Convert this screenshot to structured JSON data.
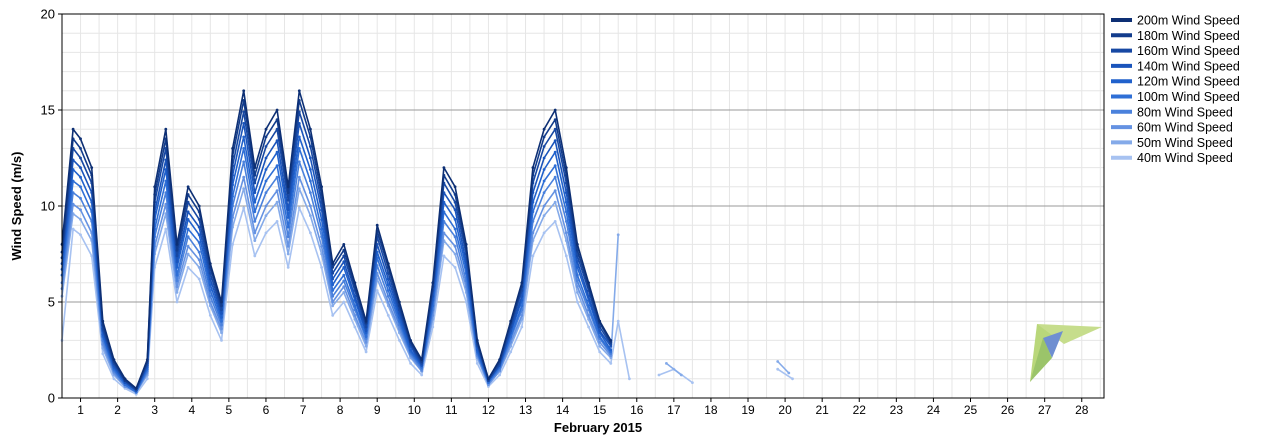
{
  "chart_data": {
    "type": "line",
    "xlabel": "February 2015",
    "ylabel": "Wind Speed (m/s)",
    "xlim": [
      0.5,
      28.6
    ],
    "ylim": [
      0,
      20
    ],
    "x_ticks": [
      1,
      2,
      3,
      4,
      5,
      6,
      7,
      8,
      9,
      10,
      11,
      12,
      13,
      14,
      15,
      16,
      17,
      18,
      19,
      20,
      21,
      22,
      23,
      24,
      25,
      26,
      27,
      28
    ],
    "y_ticks": [
      0,
      5,
      10,
      15,
      20
    ],
    "grid": true,
    "legend_position": "right",
    "x_unit": "day of February 2015",
    "series": [
      {
        "name": "200m Wind Speed",
        "color": "#0d2f74",
        "x": [
          0.5,
          0.8,
          1.0,
          1.3,
          1.6,
          1.9,
          2.2,
          2.5,
          2.8,
          3.0,
          3.3,
          3.6,
          3.9,
          4.2,
          4.5,
          4.8,
          5.1,
          5.4,
          5.7,
          6.0,
          6.3,
          6.6,
          6.9,
          7.2,
          7.5,
          7.8,
          8.1,
          8.4,
          8.7,
          9.0,
          9.3,
          9.6,
          9.9,
          10.2,
          10.5,
          10.8,
          11.1,
          11.4,
          11.7,
          12.0,
          12.3,
          12.6,
          12.9,
          13.2,
          13.5,
          13.8,
          14.1,
          14.4,
          14.7,
          15.0,
          15.3
        ],
        "y": [
          8,
          14,
          13.5,
          12,
          4,
          2,
          1,
          0.5,
          2,
          11,
          14,
          8,
          11,
          10,
          7,
          5,
          13,
          16,
          12,
          14,
          15,
          11,
          16,
          14,
          11,
          7,
          8,
          6,
          4,
          9,
          7,
          5,
          3,
          2,
          6,
          12,
          11,
          8,
          3,
          1,
          2,
          4,
          6,
          12,
          14,
          15,
          12,
          8,
          6,
          4,
          3
        ]
      },
      {
        "name": "180m Wind Speed",
        "color": "#123c8c",
        "x": [
          0.5,
          0.8,
          1.0,
          1.3,
          1.6,
          1.9,
          2.2,
          2.5,
          2.8,
          3.0,
          3.3,
          3.6,
          3.9,
          4.2,
          4.5,
          4.8,
          5.1,
          5.4,
          5.7,
          6.0,
          6.3,
          6.6,
          6.9,
          7.2,
          7.5,
          7.8,
          8.1,
          8.4,
          8.7,
          9.0,
          9.3,
          9.6,
          9.9,
          10.2,
          10.5,
          10.8,
          11.1,
          11.4,
          11.7,
          12.0,
          12.3,
          12.6,
          12.9,
          13.2,
          13.5,
          13.8,
          14.1,
          14.4,
          14.7,
          15.0,
          15.3
        ],
        "y": [
          7.6,
          13.5,
          13,
          11.6,
          3.8,
          1.9,
          0.9,
          0.5,
          1.9,
          10.6,
          13.5,
          7.7,
          10.6,
          9.7,
          6.8,
          4.8,
          12.6,
          15.5,
          11.6,
          13.6,
          14.5,
          10.7,
          15.5,
          13.6,
          10.6,
          6.8,
          7.7,
          5.8,
          3.9,
          8.7,
          6.8,
          4.8,
          2.9,
          1.9,
          5.8,
          11.6,
          10.6,
          7.8,
          2.9,
          1,
          1.9,
          3.9,
          5.8,
          11.6,
          13.6,
          14.5,
          11.6,
          7.7,
          5.8,
          3.9,
          2.9
        ]
      },
      {
        "name": "160m Wind Speed",
        "color": "#1748a3",
        "x": [
          0.5,
          0.8,
          1.0,
          1.3,
          1.6,
          1.9,
          2.2,
          2.5,
          2.8,
          3.0,
          3.3,
          3.6,
          3.9,
          4.2,
          4.5,
          4.8,
          5.1,
          5.4,
          5.7,
          6.0,
          6.3,
          6.6,
          6.9,
          7.2,
          7.5,
          7.8,
          8.1,
          8.4,
          8.7,
          9.0,
          9.3,
          9.6,
          9.9,
          10.2,
          10.5,
          10.8,
          11.1,
          11.4,
          11.7,
          12.0,
          12.3,
          12.6,
          12.9,
          13.2,
          13.5,
          13.8,
          14.1,
          14.4,
          14.7,
          15.0,
          15.3
        ],
        "y": [
          7.3,
          13,
          12.5,
          11.2,
          3.6,
          1.8,
          0.9,
          0.4,
          1.8,
          10.2,
          13,
          7.4,
          10.2,
          9.3,
          6.5,
          4.6,
          12.1,
          14.9,
          11.2,
          13.1,
          14,
          10.3,
          14.9,
          13.1,
          10.2,
          6.5,
          7.4,
          5.6,
          3.7,
          8.4,
          6.5,
          4.6,
          2.8,
          1.8,
          5.6,
          11.2,
          10.2,
          7.5,
          2.8,
          0.9,
          1.8,
          3.7,
          5.6,
          11.2,
          13.1,
          14,
          11.2,
          7.4,
          5.6,
          3.7,
          2.8
        ]
      },
      {
        "name": "140m Wind Speed",
        "color": "#1a54bb",
        "x": [
          0.5,
          0.8,
          1.0,
          1.3,
          1.6,
          1.9,
          2.2,
          2.5,
          2.8,
          3.0,
          3.3,
          3.6,
          3.9,
          4.2,
          4.5,
          4.8,
          5.1,
          5.4,
          5.7,
          6.0,
          6.3,
          6.6,
          6.9,
          7.2,
          7.5,
          7.8,
          8.1,
          8.4,
          8.7,
          9.0,
          9.3,
          9.6,
          9.9,
          10.2,
          10.5,
          10.8,
          11.1,
          11.4,
          11.7,
          12.0,
          12.3,
          12.6,
          12.9,
          13.2,
          13.5,
          13.8,
          14.1,
          14.4,
          14.7,
          15.0,
          15.3
        ],
        "y": [
          7,
          12.4,
          12,
          10.7,
          3.5,
          1.7,
          0.8,
          0.4,
          1.7,
          9.7,
          12.4,
          7.1,
          9.7,
          8.9,
          6.2,
          4.4,
          11.6,
          14.3,
          10.7,
          12.5,
          13.4,
          9.8,
          14.3,
          12.5,
          9.8,
          6.2,
          7.1,
          5.3,
          3.5,
          8,
          6.2,
          4.4,
          2.7,
          1.7,
          5.3,
          10.7,
          9.8,
          7.1,
          2.7,
          0.9,
          1.7,
          3.5,
          5.3,
          10.7,
          12.5,
          13.4,
          10.7,
          7.1,
          5.3,
          3.5,
          2.7
        ]
      },
      {
        "name": "120m Wind Speed",
        "color": "#2061cc",
        "x": [
          0.5,
          0.8,
          1.0,
          1.3,
          1.6,
          1.9,
          2.2,
          2.5,
          2.8,
          3.0,
          3.3,
          3.6,
          3.9,
          4.2,
          4.5,
          4.8,
          5.1,
          5.4,
          5.7,
          6.0,
          6.3,
          6.6,
          6.9,
          7.2,
          7.5,
          7.8,
          8.1,
          8.4,
          8.7,
          9.0,
          9.3,
          9.6,
          9.9,
          10.2,
          10.5,
          10.8,
          11.1,
          11.4,
          11.7,
          12.0,
          12.3,
          12.6,
          12.9,
          13.2,
          13.5,
          13.8,
          14.1,
          14.4,
          14.7,
          15.0,
          15.3
        ],
        "y": [
          6.7,
          11.9,
          11.5,
          10.2,
          3.3,
          1.6,
          0.8,
          0.4,
          1.6,
          9.3,
          11.9,
          6.8,
          9.3,
          8.5,
          5.9,
          4.2,
          11.1,
          13.6,
          10.2,
          11.9,
          12.8,
          9.4,
          13.6,
          11.9,
          9.3,
          5.9,
          6.8,
          5.1,
          3.4,
          7.6,
          5.9,
          4.2,
          2.5,
          1.7,
          5.1,
          10.2,
          9.3,
          6.8,
          2.5,
          0.9,
          1.7,
          3.4,
          5.1,
          10.2,
          11.9,
          12.8,
          10.2,
          6.8,
          5.1,
          3.4,
          2.5
        ]
      },
      {
        "name": "100m Wind Speed",
        "color": "#2f6fd6",
        "x": [
          0.5,
          0.8,
          1.0,
          1.3,
          1.6,
          1.9,
          2.2,
          2.5,
          2.8,
          3.0,
          3.3,
          3.6,
          3.9,
          4.2,
          4.5,
          4.8,
          5.1,
          5.4,
          5.7,
          6.0,
          6.3,
          6.6,
          6.9,
          7.2,
          7.5,
          7.8,
          8.1,
          8.4,
          8.7,
          9.0,
          9.3,
          9.6,
          9.9,
          10.2,
          10.5,
          10.8,
          11.1,
          11.4,
          11.7,
          12.0,
          12.3,
          12.6,
          12.9,
          13.2,
          13.5,
          13.8,
          14.1,
          14.4,
          14.7,
          15.0,
          15.3
        ],
        "y": [
          6.4,
          11.3,
          11,
          9.7,
          3.2,
          1.5,
          0.7,
          0.3,
          1.5,
          8.8,
          11.3,
          6.4,
          8.8,
          8.1,
          5.6,
          4,
          10.5,
          13,
          9.7,
          11.3,
          12.1,
          8.9,
          13,
          11.3,
          8.8,
          5.6,
          6.4,
          4.8,
          3.2,
          7.3,
          5.6,
          4,
          2.4,
          1.6,
          4.8,
          9.7,
          8.8,
          6.5,
          2.4,
          0.8,
          1.6,
          3.2,
          4.8,
          9.7,
          11.3,
          12.1,
          9.7,
          6.4,
          4.8,
          3.2,
          2.4
        ]
      },
      {
        "name": "80m Wind Speed",
        "color": "#4a81dc",
        "x": [
          0.5,
          0.8,
          1.0,
          1.3,
          1.6,
          1.9,
          2.2,
          2.5,
          2.8,
          3.0,
          3.3,
          3.6,
          3.9,
          4.2,
          4.5,
          4.8,
          5.1,
          5.4,
          5.7,
          6.0,
          6.3,
          6.6,
          6.9,
          7.2,
          7.5,
          7.8,
          8.1,
          8.4,
          8.7,
          9.0,
          9.3,
          9.6,
          9.9,
          10.2,
          10.5,
          10.8,
          11.1,
          11.4,
          11.7,
          12.0,
          12.3,
          12.6,
          12.9,
          13.2,
          13.5,
          13.8,
          14.1,
          14.4,
          14.7,
          15.0,
          15.3
        ],
        "y": [
          6,
          10.7,
          10.4,
          9.2,
          3,
          1.4,
          0.7,
          0.3,
          1.4,
          8.4,
          10.7,
          6.1,
          8.4,
          7.6,
          5.3,
          3.8,
          10,
          12.3,
          9.2,
          10.7,
          11.5,
          8.4,
          12.3,
          10.7,
          8.4,
          5.3,
          6.1,
          4.6,
          3.1,
          6.9,
          5.3,
          3.8,
          2.3,
          1.5,
          4.6,
          9.2,
          8.4,
          6.1,
          2.3,
          0.8,
          1.5,
          3.1,
          4.6,
          9.2,
          10.7,
          11.5,
          9.2,
          6.1,
          4.6,
          3.1,
          2.3
        ]
      },
      {
        "name": "60m Wind Speed",
        "color": "#6592e2",
        "x": [
          0.5,
          0.8,
          1.0,
          1.3,
          1.6,
          1.9,
          2.2,
          2.5,
          2.8,
          3.0,
          3.3,
          3.6,
          3.9,
          4.2,
          4.5,
          4.8,
          5.1,
          5.4,
          5.7,
          6.0,
          6.3,
          6.6,
          6.9,
          7.2,
          7.5,
          7.8,
          8.1,
          8.4,
          8.7,
          9.0,
          9.3,
          9.6,
          9.9,
          10.2,
          10.5,
          10.8,
          11.1,
          11.4,
          11.7,
          12.0,
          12.3,
          12.6,
          12.9,
          13.2,
          13.5,
          13.8,
          14.1,
          14.4,
          14.7,
          15.0,
          15.3
        ],
        "y": [
          5.7,
          10.1,
          9.8,
          8.6,
          2.8,
          1.3,
          0.6,
          0.3,
          1.3,
          7.9,
          10.1,
          5.8,
          7.9,
          7.2,
          5,
          3.6,
          9.4,
          11.5,
          8.6,
          10,
          10.8,
          7.9,
          11.5,
          10,
          7.9,
          5,
          5.8,
          4.3,
          2.9,
          6.5,
          5,
          3.6,
          2.2,
          1.4,
          4.3,
          8.6,
          7.9,
          5.8,
          2.2,
          0.7,
          1.4,
          2.9,
          4.3,
          8.6,
          10,
          10.8,
          8.6,
          5.8,
          4.3,
          2.9,
          2.2
        ]
      },
      {
        "name": "50m Wind Speed",
        "color": "#84aae9",
        "x": [
          0.5,
          0.8,
          1.0,
          1.3,
          1.6,
          1.9,
          2.2,
          2.5,
          2.8,
          3.0,
          3.3,
          3.6,
          3.9,
          4.2,
          4.5,
          4.8,
          5.1,
          5.4,
          5.7,
          6.0,
          6.3,
          6.6,
          6.9,
          7.2,
          7.5,
          7.8,
          8.1,
          8.4,
          8.7,
          9.0,
          9.3,
          9.6,
          9.9,
          10.2,
          10.5,
          10.8,
          11.1,
          11.4,
          11.7,
          12.0,
          12.3,
          12.6,
          12.9,
          13.2,
          13.5,
          13.8,
          14.1,
          14.4,
          14.7,
          15.0,
          15.3,
          15.5,
          16.8,
          17.2,
          19.8,
          20.1
        ],
        "y": [
          5.3,
          9.6,
          9.3,
          8.2,
          2.6,
          1.2,
          0.6,
          0.3,
          1.2,
          7.5,
          9.6,
          5.5,
          7.5,
          6.8,
          4.8,
          3.4,
          8.9,
          10.9,
          8.2,
          9.5,
          10.2,
          7.5,
          10.9,
          9.5,
          7.5,
          4.8,
          5.5,
          4.1,
          2.7,
          6.2,
          4.8,
          3.4,
          2.1,
          1.4,
          4.1,
          8.2,
          7.5,
          5.5,
          2.1,
          0.7,
          1.4,
          2.7,
          4.1,
          8.2,
          9.5,
          10.2,
          8.2,
          5.5,
          4.1,
          2.7,
          2.1,
          8.5,
          1.8,
          1.2,
          1.9,
          1.3
        ]
      },
      {
        "name": "40m Wind Speed",
        "color": "#a7c2f1",
        "x": [
          0.5,
          0.8,
          1.0,
          1.3,
          1.6,
          1.9,
          2.2,
          2.5,
          2.8,
          3.0,
          3.3,
          3.6,
          3.9,
          4.2,
          4.5,
          4.8,
          5.1,
          5.4,
          5.7,
          6.0,
          6.3,
          6.6,
          6.9,
          7.2,
          7.5,
          7.8,
          8.1,
          8.4,
          8.7,
          9.0,
          9.3,
          9.6,
          9.9,
          10.2,
          10.5,
          10.8,
          11.1,
          11.4,
          11.7,
          12.0,
          12.3,
          12.6,
          12.9,
          13.2,
          13.5,
          13.8,
          14.1,
          14.4,
          14.7,
          15.0,
          15.3,
          15.5,
          15.8,
          16.6,
          17.0,
          17.5,
          19.8,
          20.2
        ],
        "y": [
          3,
          8.8,
          8.5,
          7.4,
          2.3,
          1,
          0.5,
          0.2,
          1,
          6.8,
          8.8,
          5,
          6.8,
          6.2,
          4.3,
          3,
          8,
          9.9,
          7.4,
          8.6,
          9.2,
          6.8,
          9.9,
          8.6,
          6.8,
          4.3,
          5,
          3.7,
          2.4,
          5.6,
          4.3,
          3,
          1.8,
          1.2,
          3.7,
          7.4,
          6.8,
          5,
          1.8,
          0.6,
          1.2,
          2.4,
          3.7,
          7.4,
          8.6,
          9.2,
          7.4,
          5,
          3.7,
          2.4,
          1.8,
          4,
          1,
          1.2,
          1.5,
          0.8,
          1.5,
          1
        ]
      }
    ]
  },
  "logo": {
    "name": "wind-vane-logo"
  }
}
